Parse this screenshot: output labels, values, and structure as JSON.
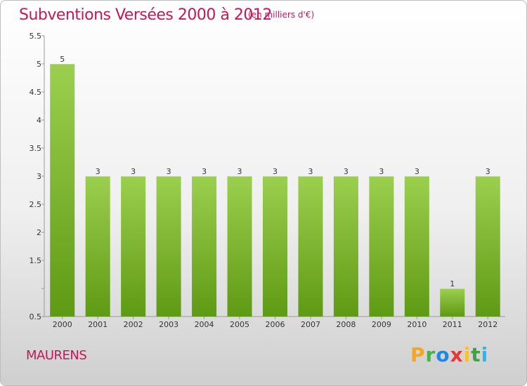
{
  "header": {
    "title": "Subventions Versées 2000 à 2012",
    "subtitle": "(en milliers d'€)"
  },
  "commune": "MAURENS",
  "logo": {
    "text": "Proxiti"
  },
  "colors": {
    "title": "#c2185b",
    "bar_top": "#9ccf4f",
    "bar_bottom": "#5f9a14"
  },
  "chart_data": {
    "type": "bar",
    "title": "Subventions Versées 2000 à 2012",
    "subtitle": "(en milliers d'€)",
    "categories": [
      "2000",
      "2001",
      "2002",
      "2003",
      "2004",
      "2005",
      "2006",
      "2007",
      "2008",
      "2009",
      "2010",
      "2011",
      "2012"
    ],
    "values": [
      5,
      3,
      3,
      3,
      3,
      3,
      3,
      3,
      3,
      3,
      3,
      1,
      3
    ],
    "data_labels": [
      "5",
      "3",
      "3",
      "3",
      "3",
      "3",
      "3",
      "3",
      "3",
      "3",
      "3",
      "1",
      "3"
    ],
    "ylim": [
      0.5,
      5.5
    ],
    "yticks": [
      0.5,
      1,
      1.5,
      2,
      2.5,
      3,
      3.5,
      4,
      4.5,
      5,
      5.5
    ],
    "ytick_labels": [
      "0.5",
      "",
      "1.5",
      "2",
      "2.5",
      "3",
      "3.5",
      "4",
      "4.5",
      "5",
      "5.5"
    ],
    "grid": false,
    "xlabel": "",
    "ylabel": ""
  }
}
